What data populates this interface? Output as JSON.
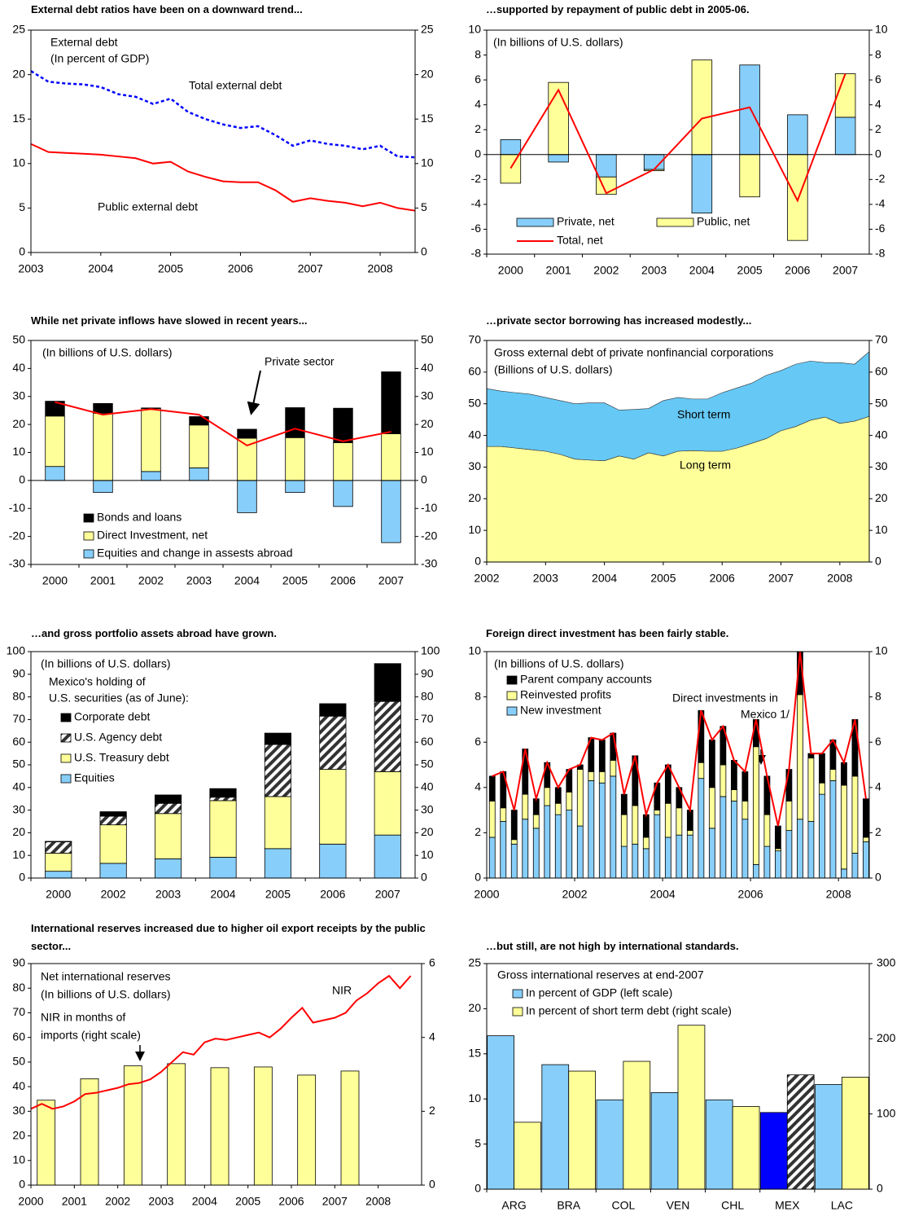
{
  "chart_data": [
    {
      "type": "line",
      "title": "External debt ratios have been on a downward trend...",
      "annotations": [
        "External debt",
        "(In percent of GDP)"
      ],
      "x": [
        2003,
        2003.25,
        2003.5,
        2003.75,
        2004,
        2004.25,
        2004.5,
        2004.75,
        2005,
        2005.25,
        2005.5,
        2005.75,
        2006,
        2006.25,
        2006.5,
        2006.75,
        2007,
        2007.25,
        2007.5,
        2007.75,
        2008,
        2008.25,
        2008.5
      ],
      "xlim": [
        2003,
        2008.5
      ],
      "xticks": [
        2003,
        2004,
        2005,
        2006,
        2007,
        2008
      ],
      "ylim": [
        0,
        25
      ],
      "yticks": [
        0,
        5,
        10,
        15,
        20,
        25
      ],
      "mirror_y": true,
      "series": [
        {
          "name": "Total external debt",
          "color": "#0000ff",
          "dash": true,
          "values": [
            20.4,
            19.2,
            19.0,
            18.9,
            18.6,
            17.8,
            17.5,
            16.7,
            17.3,
            15.8,
            15.0,
            14.4,
            14.0,
            14.2,
            13.2,
            12.0,
            12.6,
            12.2,
            12.0,
            11.6,
            12.0,
            10.8,
            10.7
          ]
        },
        {
          "name": "Public external debt",
          "color": "#ff0000",
          "values": [
            12.2,
            11.3,
            11.2,
            11.1,
            11.0,
            10.8,
            10.6,
            10.0,
            10.2,
            9.1,
            8.5,
            8.0,
            7.9,
            7.9,
            7.0,
            5.7,
            6.1,
            5.8,
            5.6,
            5.2,
            5.6,
            5.0,
            4.7
          ]
        }
      ]
    },
    {
      "type": "bar",
      "title": "…supported by repayment of public debt in 2005-06.",
      "stacked": true,
      "annotations": [
        "(In billions of U.S. dollars)"
      ],
      "categories": [
        "2000",
        "2001",
        "2002",
        "2003",
        "2004",
        "2005",
        "2006",
        "2007"
      ],
      "ylim": [
        -8,
        10
      ],
      "yticks": [
        -8,
        -6,
        -4,
        -2,
        0,
        2,
        4,
        6,
        8,
        10
      ],
      "mirror_y": true,
      "legend": "lower left",
      "series": [
        {
          "name": "Private, net",
          "color": "#87cefa",
          "values": [
            1.2,
            -0.6,
            -1.8,
            -1.2,
            -4.7,
            7.2,
            3.2,
            3.0
          ]
        },
        {
          "name": "Public, net",
          "color": "#ffff99",
          "values": [
            -2.3,
            5.8,
            -1.4,
            -0.1,
            7.6,
            -3.4,
            -6.9,
            3.5
          ]
        },
        {
          "name": "Total, net",
          "type": "line",
          "color": "#ff0000",
          "values": [
            -1.1,
            5.2,
            -3.1,
            -1.2,
            2.9,
            3.8,
            -3.7,
            6.5
          ]
        }
      ]
    },
    {
      "type": "bar",
      "title": "While net private inflows have slowed in recent years...",
      "stacked": true,
      "annotations": [
        "(In billions of U.S. dollars)"
      ],
      "categories": [
        "2000",
        "2001",
        "2002",
        "2003",
        "2004",
        "2005",
        "2006",
        "2007"
      ],
      "ylim": [
        -30,
        50
      ],
      "yticks": [
        -30,
        -20,
        -10,
        0,
        10,
        20,
        30,
        40,
        50
      ],
      "mirror_y": true,
      "legend": "lower left",
      "series": [
        {
          "name": "Equities and change in assests abroad",
          "color": "#87cefa",
          "values": [
            5,
            -4.3,
            3.2,
            4.5,
            -11.5,
            -4.3,
            -9.3,
            -22.2
          ]
        },
        {
          "name": "Direct Investment, net",
          "color": "#ffff99",
          "values": [
            18,
            24,
            22.5,
            15.3,
            15.1,
            15.3,
            13.5,
            16.7
          ]
        },
        {
          "name": "Bonds and loans",
          "color": "#000000",
          "values": [
            5.3,
            3.5,
            0.2,
            3.0,
            3.2,
            10.7,
            12.3,
            22.1
          ]
        },
        {
          "name": "Private sector",
          "type": "line",
          "color": "#ff0000",
          "values": [
            28,
            23.5,
            25.5,
            23.5,
            12.5,
            18.5,
            14,
            17.4
          ]
        }
      ]
    },
    {
      "type": "area",
      "title": "…private sector borrowing has increased modestly...",
      "annotations": [
        "Gross external debt of private nonfinancial corporations",
        "(Billions of U.S. dollars)"
      ],
      "x": [
        2002,
        2002.25,
        2002.5,
        2002.75,
        2003,
        2003.25,
        2003.5,
        2003.75,
        2004,
        2004.25,
        2004.5,
        2004.75,
        2005,
        2005.25,
        2005.5,
        2005.75,
        2006,
        2006.25,
        2006.5,
        2006.75,
        2007,
        2007.25,
        2007.5,
        2007.75,
        2008,
        2008.25,
        2008.5
      ],
      "xlim": [
        2002,
        2008.5
      ],
      "xticks": [
        2002,
        2003,
        2004,
        2005,
        2006,
        2007,
        2008
      ],
      "ylim": [
        0,
        70
      ],
      "yticks": [
        0,
        10,
        20,
        30,
        40,
        50,
        60,
        70
      ],
      "mirror_y": true,
      "series": [
        {
          "name": "Long term",
          "color": "#ffff99",
          "values": [
            36.5,
            36.5,
            36,
            35.5,
            35,
            34,
            32.5,
            32.2,
            32,
            33.5,
            32.5,
            34.5,
            33.5,
            35,
            35.2,
            35,
            35,
            36,
            37.5,
            39,
            41.5,
            42.8,
            44.8,
            45.8,
            43.8,
            44.5,
            46
          ]
        },
        {
          "name": "Short term",
          "color": "#66c8f5",
          "values": [
            18.3,
            17.5,
            17.5,
            17.5,
            17,
            17,
            17.5,
            18.1,
            18.3,
            14.5,
            15.7,
            14,
            17.5,
            17,
            16.3,
            16.5,
            18.5,
            19,
            19,
            20,
            19,
            19.7,
            18.7,
            17.2,
            19.2,
            18,
            20.5
          ]
        }
      ]
    },
    {
      "type": "bar",
      "title": "…and gross portfolio assets abroad have grown.",
      "stacked": true,
      "annotations": [
        "(In billions of U.S. dollars)",
        "Mexico's holding of",
        "U.S. securities (as of June):"
      ],
      "categories": [
        "2000",
        "2002",
        "2003",
        "2004",
        "2005",
        "2006",
        "2007"
      ],
      "ylim": [
        0,
        100
      ],
      "yticks": [
        0,
        10,
        20,
        30,
        40,
        50,
        60,
        70,
        80,
        90,
        100
      ],
      "mirror_y": true,
      "legend": "upper left",
      "series": [
        {
          "name": "Equities",
          "color": "#87cefa",
          "values": [
            3,
            6.5,
            8.5,
            9.2,
            13,
            15,
            19
          ]
        },
        {
          "name": "U.S. Treasury debt",
          "color": "#ffff99",
          "values": [
            8,
            17,
            20,
            25,
            23,
            33,
            28
          ]
        },
        {
          "name": "U.S. Agency debt",
          "color": "#ffffff",
          "pattern": "hatch",
          "values": [
            5,
            3.8,
            4.5,
            1.5,
            23,
            23.5,
            31
          ]
        },
        {
          "name": "Corporate debt",
          "color": "#000000",
          "values": [
            0.2,
            2,
            3.7,
            3.8,
            5,
            5.5,
            16.7
          ]
        }
      ]
    },
    {
      "type": "bar",
      "title": "Foreign direct investment has been fairly stable.",
      "stacked": true,
      "annotations": [
        "(In billions of U.S. dollars)",
        "Direct investments in",
        "Mexico 1/"
      ],
      "x": [
        2000.125,
        2000.375,
        2000.625,
        2000.875,
        2001.125,
        2001.375,
        2001.625,
        2001.875,
        2002.125,
        2002.375,
        2002.625,
        2002.875,
        2003.125,
        2003.375,
        2003.625,
        2003.875,
        2004.125,
        2004.375,
        2004.625,
        2004.875,
        2005.125,
        2005.375,
        2005.625,
        2005.875,
        2006.125,
        2006.375,
        2006.625,
        2006.875,
        2007.125,
        2007.375,
        2007.625,
        2007.875,
        2008.125,
        2008.375,
        2008.625
      ],
      "xlim": [
        2000,
        2008.7
      ],
      "xticks": [
        2000,
        2002,
        2004,
        2006,
        2008
      ],
      "ylim": [
        0,
        10
      ],
      "yticks": [
        0,
        2,
        4,
        6,
        8,
        10
      ],
      "mirror_y": true,
      "legend": "upper left",
      "series": [
        {
          "name": "New investment",
          "color": "#87cefa",
          "values": [
            1.8,
            2.5,
            1.5,
            2.6,
            2.2,
            3.2,
            2.8,
            3.0,
            2.3,
            4.3,
            4.2,
            4.5,
            1.4,
            1.5,
            1.3,
            2.8,
            1.8,
            1.9,
            1.9,
            4.4,
            2.2,
            3.6,
            3.4,
            2.6,
            0.6,
            1.4,
            1.2,
            2.1,
            2.6,
            2.5,
            3.7,
            4.3,
            0.4,
            1.1,
            1.6
          ]
        },
        {
          "name": "Reinvested profits",
          "color": "#ffff99",
          "values": [
            1.6,
            0.6,
            0.2,
            1.1,
            0.6,
            0.8,
            0.5,
            0.8,
            2.5,
            0.4,
            0.5,
            0.7,
            1.4,
            1.7,
            0.5,
            0.2,
            1.5,
            1.2,
            0.2,
            0.7,
            1.8,
            1.4,
            0.5,
            0.8,
            5.2,
            1.4,
            0.1,
            1.3,
            5.5,
            2.8,
            0.5,
            0.5,
            3.7,
            3.4,
            0.2
          ]
        },
        {
          "name": "Parent company accounts",
          "color": "#000000",
          "values": [
            1.1,
            1.6,
            1.3,
            2.0,
            0.7,
            1.1,
            0.7,
            1.0,
            0.2,
            1.5,
            1.4,
            1.2,
            0.9,
            2.2,
            1.0,
            1.2,
            1.7,
            0.9,
            0.9,
            2.3,
            2.1,
            1.7,
            1.3,
            1.3,
            1.2,
            1.7,
            1.0,
            1.4,
            1.9,
            0.2,
            1.3,
            1.3,
            1.0,
            2.5,
            1.7
          ]
        },
        {
          "type": "line",
          "color": "#ff0000",
          "values": [
            4.5,
            4.7,
            3.0,
            5.7,
            3.5,
            5.1,
            4.0,
            4.8,
            5.0,
            6.2,
            6.1,
            6.4,
            3.7,
            5.4,
            2.8,
            4.2,
            5.0,
            4.0,
            3.0,
            7.4,
            6.1,
            6.7,
            5.2,
            4.7,
            7.0,
            4.5,
            2.3,
            4.8,
            10.0,
            5.5,
            5.5,
            6.1,
            5.1,
            7.0,
            3.5
          ]
        }
      ]
    },
    {
      "type": "line",
      "title": "International reserves increased due to higher oil export receipts by the public sector...",
      "annotations": [
        "Net international reserves",
        "(In billions of U.S. dollars)",
        "NIR in months of",
        "imports (right scale)"
      ],
      "xlim": [
        2000,
        2009
      ],
      "xticks": [
        2000,
        2001,
        2002,
        2003,
        2004,
        2005,
        2006,
        2007,
        2008
      ],
      "ylim": [
        0,
        90
      ],
      "yticks": [
        0,
        10,
        20,
        30,
        40,
        50,
        60,
        70,
        80,
        90
      ],
      "y2lim": [
        0,
        6
      ],
      "y2ticks": [
        0,
        2,
        4,
        6
      ],
      "series": [
        {
          "type": "bar",
          "axis": "y2",
          "color": "#ffff99",
          "x": [
            2000.35,
            2001.35,
            2002.35,
            2003.35,
            2004.35,
            2005.35,
            2006.35,
            2007.35
          ],
          "values": [
            2.3,
            2.88,
            3.23,
            3.29,
            3.18,
            3.2,
            2.98,
            3.09
          ]
        },
        {
          "name": "NIR",
          "color": "#ff0000",
          "x": [
            2000,
            2000.25,
            2000.5,
            2000.75,
            2001,
            2001.25,
            2001.5,
            2001.75,
            2002,
            2002.25,
            2002.5,
            2002.75,
            2003,
            2003.25,
            2003.5,
            2003.75,
            2004,
            2004.25,
            2004.5,
            2004.75,
            2005,
            2005.25,
            2005.5,
            2005.75,
            2006,
            2006.25,
            2006.5,
            2006.75,
            2007,
            2007.25,
            2007.5,
            2007.75,
            2008,
            2008.25,
            2008.5,
            2008.75
          ],
          "values": [
            31,
            33,
            31,
            32,
            34,
            37,
            37.5,
            38.5,
            39.5,
            41,
            41.5,
            43,
            46,
            50,
            54,
            53,
            58,
            59.5,
            59,
            60,
            61,
            62,
            60,
            63.5,
            68,
            72,
            66,
            67,
            68,
            70,
            75,
            78,
            82,
            85,
            80,
            85
          ]
        }
      ]
    },
    {
      "type": "bar",
      "title": "…but still, are not high by international standards.",
      "stacked": false,
      "annotations": [
        "Gross international reserves at end-2007"
      ],
      "categories": [
        "ARG",
        "BRA",
        "COL",
        "VEN",
        "CHL",
        "MEX",
        "LAC"
      ],
      "ylim": [
        0,
        25
      ],
      "yticks": [
        0,
        5,
        10,
        15,
        20,
        25
      ],
      "y2lim": [
        0,
        300
      ],
      "y2ticks": [
        0,
        100,
        200,
        300
      ],
      "legend": "upper left",
      "series": [
        {
          "name": "In percent of GDP (left scale)",
          "color": "#87cefa",
          "colors": [
            "#87cefa",
            "#87cefa",
            "#87cefa",
            "#87cefa",
            "#87cefa",
            "#0000ff",
            "#87cefa"
          ],
          "values": [
            17,
            13.8,
            9.9,
            10.7,
            9.9,
            8.5,
            11.6
          ]
        },
        {
          "name": "In percent of short term debt (right scale)",
          "axis": "y2",
          "color": "#ffff99",
          "hatched": [
            false,
            false,
            false,
            false,
            false,
            true,
            false
          ],
          "values": [
            89,
            157,
            170,
            218,
            110,
            152,
            149
          ]
        }
      ]
    }
  ]
}
